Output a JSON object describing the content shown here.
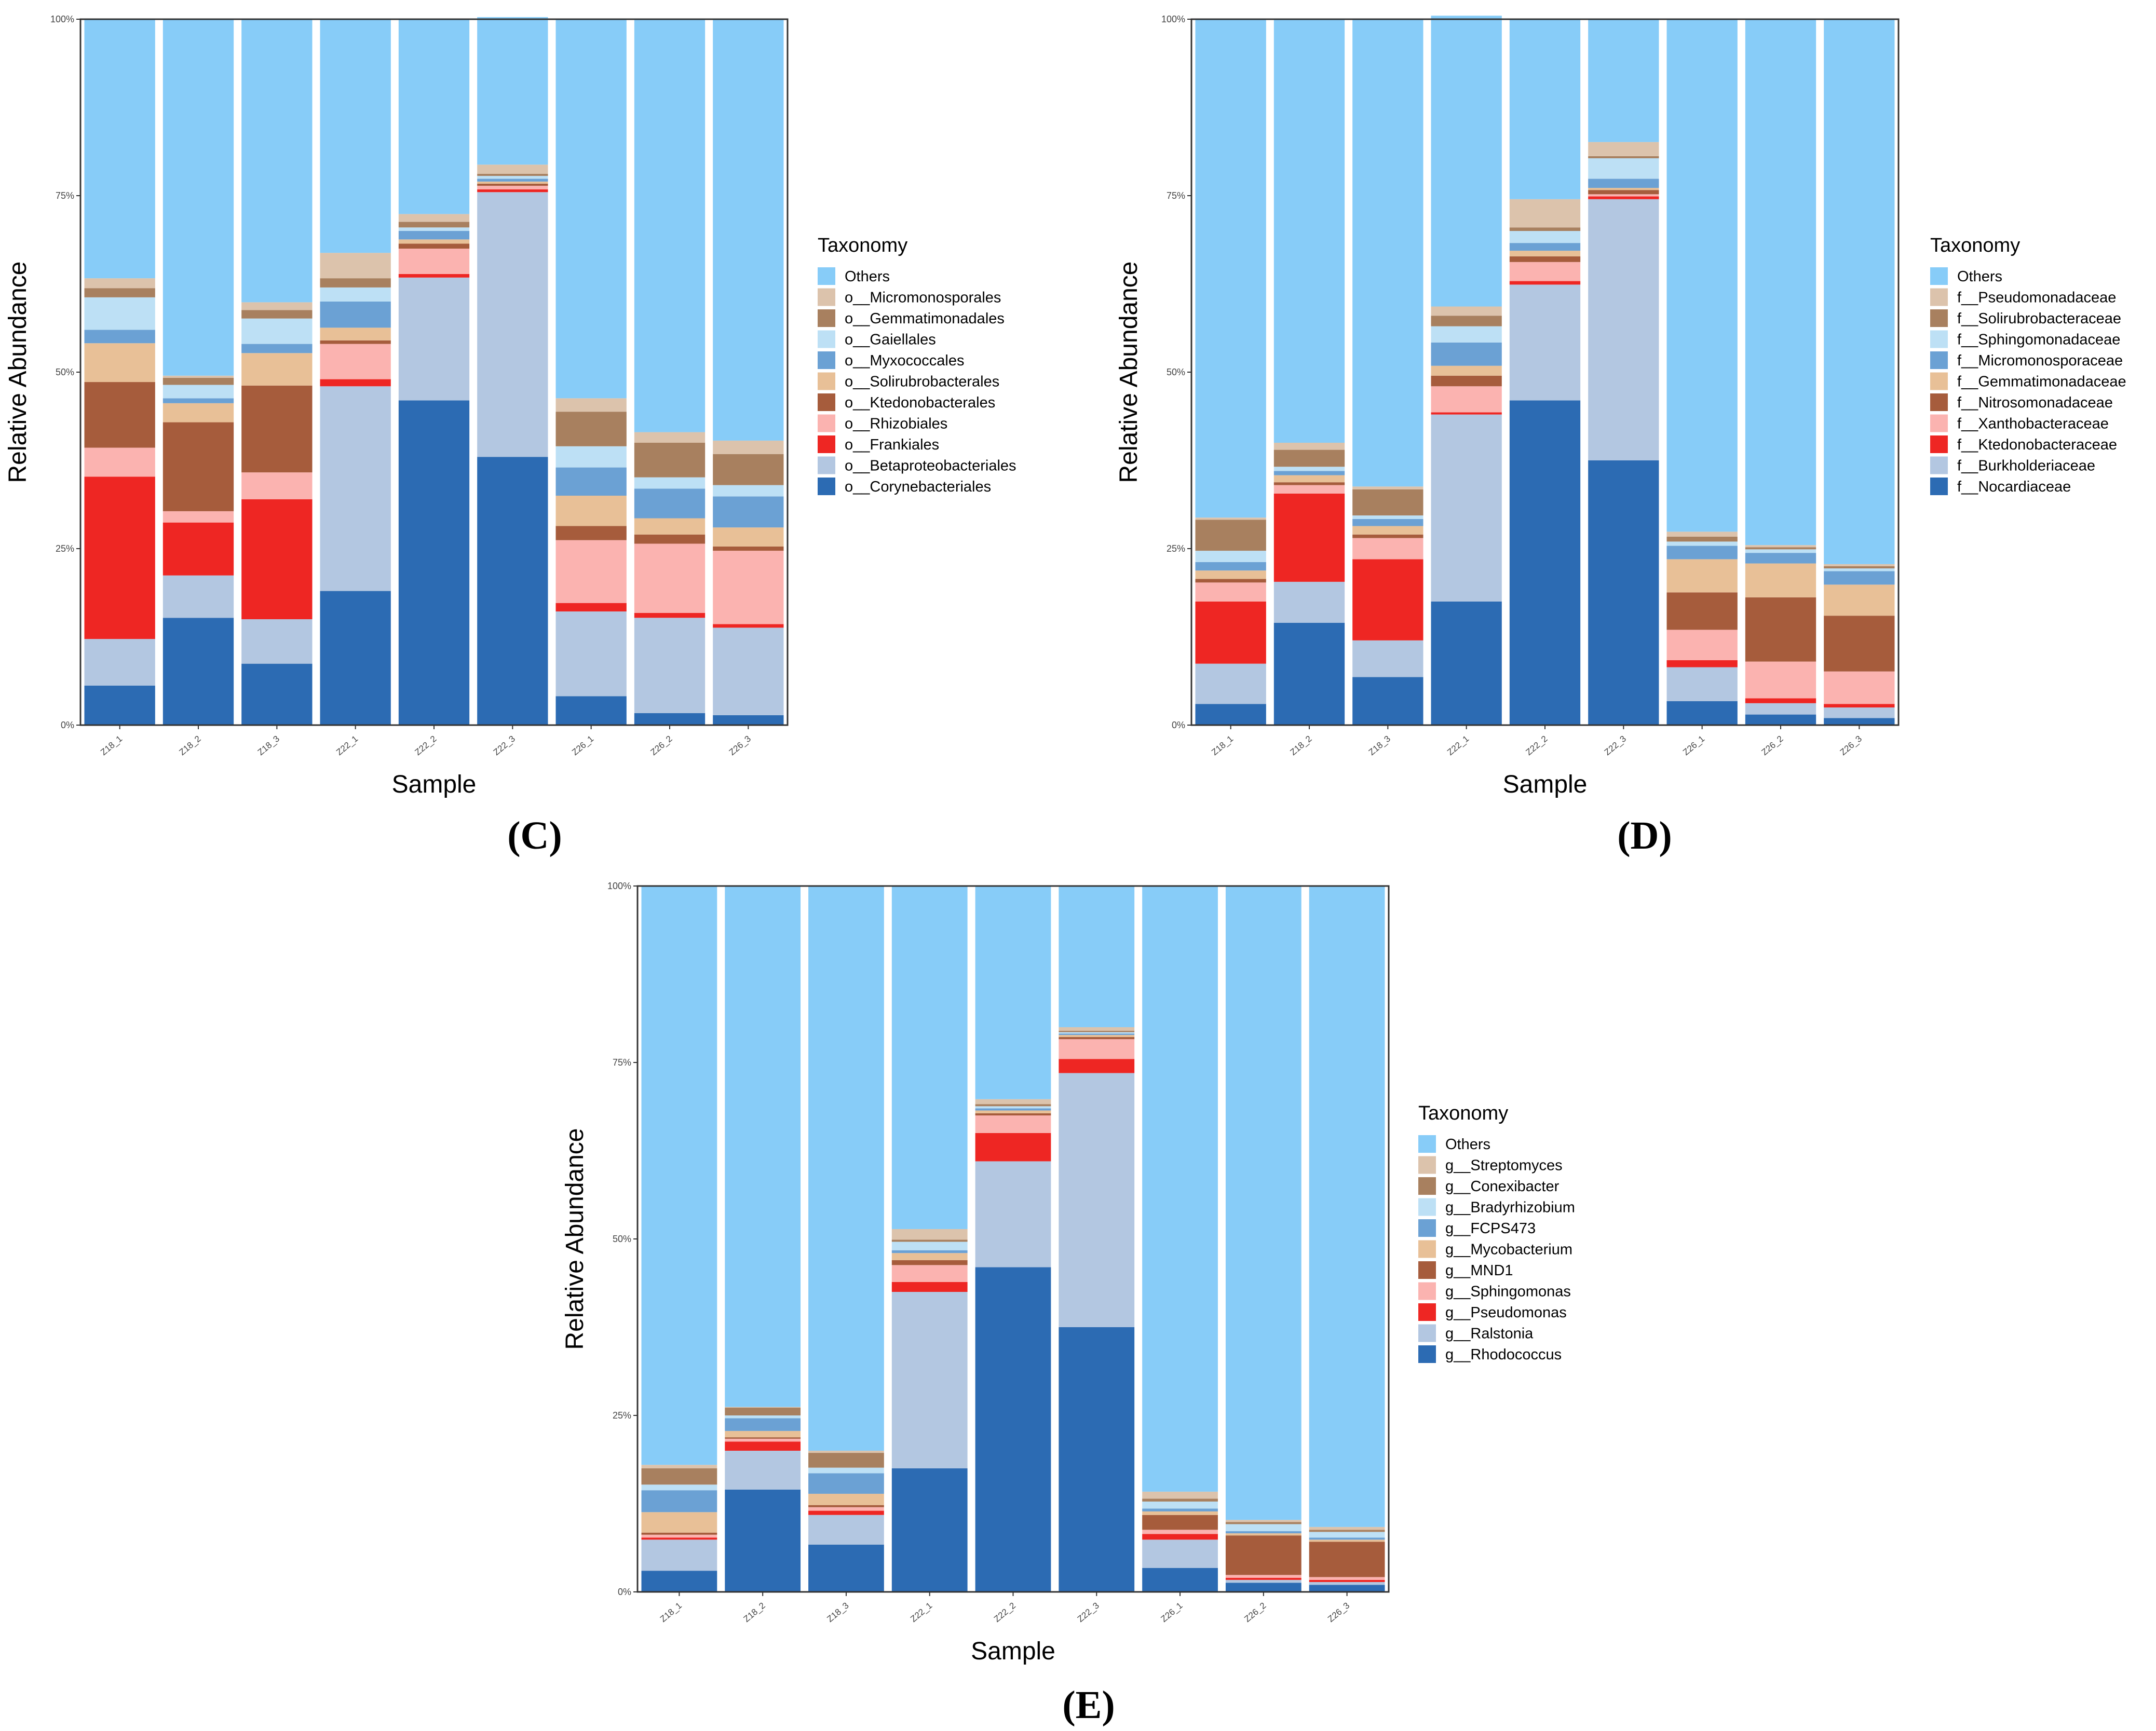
{
  "chart_data": [
    {
      "type": "bar",
      "stacked": true,
      "panel_label": "(C)",
      "xlabel": "Sample",
      "ylabel": "Relative Abundance",
      "ylim": [
        0,
        100
      ],
      "yticks": [
        "0%",
        "25%",
        "50%",
        "75%",
        "100%"
      ],
      "categories": [
        "Z18_1",
        "Z18_2",
        "Z18_3",
        "Z22_1",
        "Z22_2",
        "Z22_3",
        "Z26_1",
        "Z26_2",
        "Z26_3"
      ],
      "legend_title": "Taxonomy",
      "legend_position": "right",
      "series": [
        {
          "name": "o__Corynebacteriales",
          "color": "#2c6bb3",
          "values": [
            5.6,
            15.2,
            8.7,
            19.0,
            46.0,
            38.0,
            4.1,
            1.7,
            1.4
          ]
        },
        {
          "name": "o__Betaproteobacteriales",
          "color": "#b3c7e1",
          "values": [
            6.6,
            6.0,
            6.3,
            29.0,
            17.4,
            37.5,
            12.0,
            13.5,
            12.4
          ]
        },
        {
          "name": "o__Frankiales",
          "color": "#ee2623",
          "values": [
            23.0,
            7.5,
            17.0,
            1.0,
            0.5,
            0.4,
            1.2,
            0.7,
            0.5
          ]
        },
        {
          "name": "o__Rhizobiales",
          "color": "#fbb3b0",
          "values": [
            4.1,
            1.6,
            3.8,
            5.0,
            3.6,
            0.5,
            8.9,
            9.8,
            10.4
          ]
        },
        {
          "name": "o__Ktedonobacterales",
          "color": "#a65c3c",
          "values": [
            9.3,
            12.6,
            12.3,
            0.5,
            0.7,
            0.3,
            2.0,
            1.3,
            0.6
          ]
        },
        {
          "name": "o__Solirubrobacterales",
          "color": "#e8c097",
          "values": [
            5.5,
            2.7,
            4.6,
            1.8,
            0.6,
            0.3,
            4.3,
            2.3,
            2.7
          ]
        },
        {
          "name": "o__Myxococcales",
          "color": "#6ba1d4",
          "values": [
            1.9,
            0.7,
            1.3,
            3.7,
            1.2,
            0.4,
            4.0,
            4.2,
            4.4
          ]
        },
        {
          "name": "o__Gaiellales",
          "color": "#bde0f5",
          "values": [
            4.6,
            1.9,
            3.6,
            2.0,
            0.5,
            0.4,
            3.0,
            1.6,
            1.6
          ]
        },
        {
          "name": "o__Gemmatimonadales",
          "color": "#a8805f",
          "values": [
            1.3,
            1.0,
            1.2,
            1.3,
            0.8,
            0.3,
            4.9,
            4.9,
            4.4
          ]
        },
        {
          "name": "o__Micromonosporales",
          "color": "#dcc3ac",
          "values": [
            1.4,
            0.3,
            1.1,
            3.6,
            1.1,
            1.3,
            1.9,
            1.5,
            1.9
          ]
        },
        {
          "name": "Others",
          "color": "#87ccf8",
          "values": [
            36.7,
            50.5,
            40.1,
            33.1,
            27.6,
            20.9,
            53.7,
            58.5,
            59.7
          ]
        }
      ]
    },
    {
      "type": "bar",
      "stacked": true,
      "panel_label": "(D)",
      "xlabel": "Sample",
      "ylabel": "Relative Abundance",
      "ylim": [
        0,
        100
      ],
      "yticks": [
        "0%",
        "25%",
        "50%",
        "75%",
        "100%"
      ],
      "categories": [
        "Z18_1",
        "Z18_2",
        "Z18_3",
        "Z22_1",
        "Z22_2",
        "Z22_3",
        "Z26_1",
        "Z26_2",
        "Z26_3"
      ],
      "legend_title": "Taxonomy",
      "legend_position": "right",
      "series": [
        {
          "name": "f__Nocardiaceae",
          "color": "#2c6bb3",
          "values": [
            3.0,
            14.5,
            6.8,
            17.5,
            46.0,
            37.5,
            3.4,
            1.5,
            1.0
          ]
        },
        {
          "name": "f__Burkholderiaceae",
          "color": "#b3c7e1",
          "values": [
            5.7,
            5.8,
            5.2,
            26.5,
            16.4,
            37.0,
            4.8,
            1.6,
            1.5
          ]
        },
        {
          "name": "f__Ktedonobacteraceae",
          "color": "#ee2623",
          "values": [
            8.8,
            12.5,
            11.5,
            0.3,
            0.5,
            0.4,
            1.0,
            0.7,
            0.5
          ]
        },
        {
          "name": "f__Xanthobacteraceae",
          "color": "#fbb3b0",
          "values": [
            2.7,
            1.2,
            3.0,
            3.7,
            2.7,
            0.3,
            4.3,
            5.2,
            4.6
          ]
        },
        {
          "name": "f__Nitrosomonadaceae",
          "color": "#a65c3c",
          "values": [
            0.5,
            0.4,
            0.5,
            1.5,
            0.8,
            0.6,
            5.3,
            9.1,
            7.9
          ]
        },
        {
          "name": "f__Gemmatimonadaceae",
          "color": "#e8c097",
          "values": [
            1.2,
            1.0,
            1.2,
            1.4,
            0.8,
            0.3,
            4.7,
            4.8,
            4.4
          ]
        },
        {
          "name": "f__Micromonosporaceae",
          "color": "#6ba1d4",
          "values": [
            1.2,
            0.6,
            1.0,
            3.3,
            1.1,
            1.3,
            1.9,
            1.5,
            1.9
          ]
        },
        {
          "name": "f__Sphingomonadaceae",
          "color": "#bde0f5",
          "values": [
            1.6,
            0.6,
            0.5,
            2.3,
            1.7,
            2.9,
            0.6,
            0.5,
            0.4
          ]
        },
        {
          "name": "f__Solirubrobacteraceae",
          "color": "#a8805f",
          "values": [
            4.4,
            2.4,
            3.7,
            1.5,
            0.5,
            0.3,
            0.7,
            0.3,
            0.3
          ]
        },
        {
          "name": "f__Pseudomonadaceae",
          "color": "#dcc3ac",
          "values": [
            0.3,
            1.0,
            0.4,
            1.3,
            4.0,
            2.0,
            0.7,
            0.3,
            0.3
          ]
        },
        {
          "name": "Others",
          "color": "#87ccf8",
          "values": [
            70.6,
            60.0,
            66.2,
            41.2,
            25.5,
            17.4,
            72.6,
            74.5,
            77.2
          ]
        }
      ]
    },
    {
      "type": "bar",
      "stacked": true,
      "panel_label": "(E)",
      "xlabel": "Sample",
      "ylabel": "Relative Abundance",
      "ylim": [
        0,
        100
      ],
      "yticks": [
        "0%",
        "25%",
        "50%",
        "75%",
        "100%"
      ],
      "categories": [
        "Z18_1",
        "Z18_2",
        "Z18_3",
        "Z22_1",
        "Z22_2",
        "Z22_3",
        "Z26_1",
        "Z26_2",
        "Z26_3"
      ],
      "legend_title": "Taxonomy",
      "legend_position": "right",
      "series": [
        {
          "name": "g__Rhodococcus",
          "color": "#2c6bb3",
          "values": [
            3.0,
            14.5,
            6.7,
            17.5,
            46.0,
            37.5,
            3.4,
            1.3,
            1.0
          ]
        },
        {
          "name": "g__Ralstonia",
          "color": "#b3c7e1",
          "values": [
            4.4,
            5.5,
            4.2,
            25.0,
            15.0,
            36.0,
            4.0,
            0.4,
            0.4
          ]
        },
        {
          "name": "g__Pseudomonas",
          "color": "#ee2623",
          "values": [
            0.3,
            1.3,
            0.6,
            1.4,
            4.0,
            2.0,
            0.8,
            0.3,
            0.3
          ]
        },
        {
          "name": "g__Sphingomonas",
          "color": "#fbb3b0",
          "values": [
            0.4,
            0.4,
            0.5,
            2.4,
            2.5,
            2.8,
            0.6,
            0.4,
            0.4
          ]
        },
        {
          "name": "g__MND1",
          "color": "#a65c3c",
          "values": [
            0.3,
            0.2,
            0.3,
            0.7,
            0.3,
            0.3,
            2.1,
            5.6,
            5.0
          ]
        },
        {
          "name": "g__Mycobacterium",
          "color": "#e8c097",
          "values": [
            2.9,
            0.9,
            1.6,
            1.0,
            0.4,
            0.3,
            0.5,
            0.3,
            0.3
          ]
        },
        {
          "name": "g__FCPS473",
          "color": "#6ba1d4",
          "values": [
            3.1,
            1.8,
            2.9,
            0.4,
            0.3,
            0.2,
            0.4,
            0.3,
            0.3
          ]
        },
        {
          "name": "g__Bradyrhizobium",
          "color": "#bde0f5",
          "values": [
            0.8,
            0.4,
            0.8,
            1.2,
            0.3,
            0.2,
            1.0,
            1.0,
            0.8
          ]
        },
        {
          "name": "g__Conexibacter",
          "color": "#a8805f",
          "values": [
            2.3,
            1.1,
            2.1,
            0.3,
            0.3,
            0.2,
            0.4,
            0.3,
            0.3
          ]
        },
        {
          "name": "g__Streptomyces",
          "color": "#dcc3ac",
          "values": [
            0.5,
            0.1,
            0.3,
            1.5,
            0.7,
            0.5,
            1.0,
            0.3,
            0.4
          ]
        },
        {
          "name": "Others",
          "color": "#87ccf8",
          "values": [
            82.0,
            73.8,
            80.0,
            48.6,
            30.2,
            20.0,
            85.8,
            89.8,
            90.8
          ]
        }
      ]
    }
  ]
}
